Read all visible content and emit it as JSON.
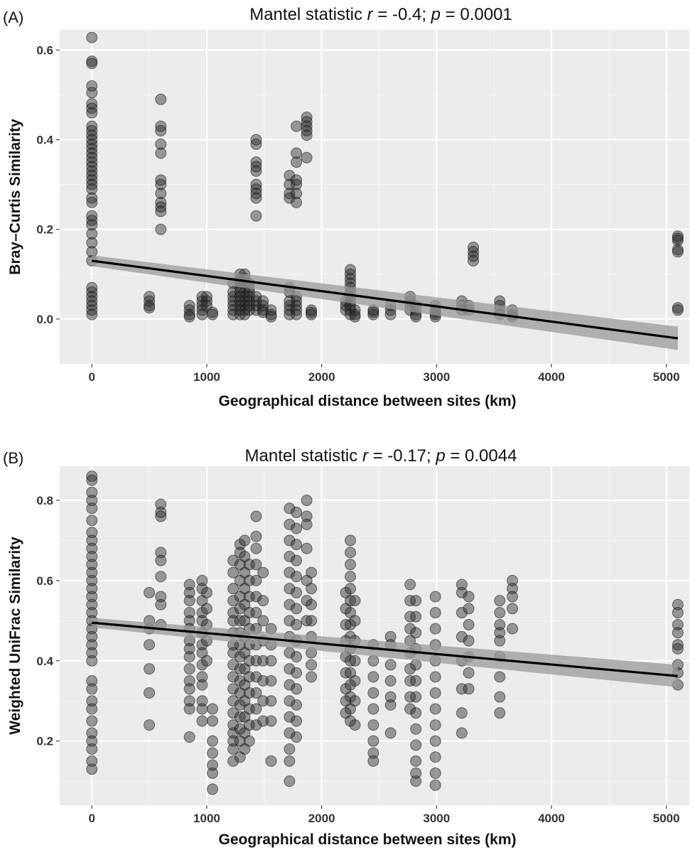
{
  "chart_data": [
    {
      "panel": "(A)",
      "type": "scatter",
      "title": {
        "prefix": "Mantel statistic ",
        "r_symbol": "r",
        "r_value": " = -0.4; ",
        "p_symbol": "p",
        "p_value": " = 0.0001"
      },
      "xlabel": "Geographical distance between sites (km)",
      "ylabel": "Bray–Curtis Similarity",
      "xlim": [
        -280,
        5200
      ],
      "ylim": [
        -0.1,
        0.645
      ],
      "xticks": [
        0,
        1000,
        2000,
        3000,
        4000,
        5000
      ],
      "yticks": [
        0.0,
        0.2,
        0.4,
        0.6
      ],
      "ytick_labels": [
        "0.0",
        "0.2",
        "0.4",
        "0.6"
      ],
      "grid": true,
      "point_color": "#2a2a2a",
      "regression": {
        "x": [
          0,
          5100
        ],
        "y": [
          0.13,
          -0.043
        ],
        "ci_start": 0.012,
        "ci_end": 0.026
      },
      "points": [
        {
          "x": 0,
          "y": [
            0.628,
            0.575,
            0.57,
            0.52,
            0.505,
            0.48,
            0.47,
            0.46,
            0.43,
            0.42,
            0.41,
            0.4,
            0.39,
            0.38,
            0.37,
            0.36,
            0.35,
            0.34,
            0.33,
            0.32,
            0.31,
            0.3,
            0.29,
            0.27,
            0.26,
            0.23,
            0.22,
            0.21,
            0.19,
            0.17,
            0.15,
            0.13,
            0.07,
            0.06,
            0.05,
            0.04,
            0.03,
            0.02,
            0.01
          ]
        },
        {
          "x": 500,
          "y": [
            0.05,
            0.04,
            0.03,
            0.025
          ]
        },
        {
          "x": 600,
          "y": [
            0.49,
            0.43,
            0.42,
            0.39,
            0.37,
            0.31,
            0.3,
            0.28,
            0.26,
            0.25,
            0.24,
            0.2
          ]
        },
        {
          "x": 850,
          "y": [
            0.03,
            0.02,
            0.01,
            0.005
          ]
        },
        {
          "x": 960,
          "y": [
            0.05,
            0.04,
            0.03,
            0.02,
            0.01
          ]
        },
        {
          "x": 1000,
          "y": [
            0.05,
            0.04,
            0.03
          ]
        },
        {
          "x": 1050,
          "y": [
            0.015,
            0.01
          ]
        },
        {
          "x": 1230,
          "y": [
            0.08,
            0.06,
            0.05,
            0.04,
            0.03,
            0.02,
            0.01
          ]
        },
        {
          "x": 1290,
          "y": [
            0.1,
            0.09,
            0.08,
            0.07,
            0.06,
            0.05,
            0.04,
            0.03,
            0.02,
            0.01
          ]
        },
        {
          "x": 1330,
          "y": [
            0.1,
            0.09,
            0.08,
            0.06,
            0.05,
            0.04,
            0.03,
            0.02,
            0.01
          ]
        },
        {
          "x": 1370,
          "y": [
            0.08,
            0.07,
            0.06,
            0.05,
            0.04,
            0.03,
            0.02
          ]
        },
        {
          "x": 1430,
          "y": [
            0.4,
            0.39,
            0.35,
            0.34,
            0.33,
            0.3,
            0.29,
            0.28,
            0.27,
            0.23,
            0.05,
            0.04,
            0.03,
            0.02
          ]
        },
        {
          "x": 1490,
          "y": [
            0.04,
            0.03,
            0.02,
            0.015
          ]
        },
        {
          "x": 1560,
          "y": [
            0.02,
            0.01,
            0.005
          ]
        },
        {
          "x": 1720,
          "y": [
            0.32,
            0.3,
            0.28,
            0.27,
            0.07,
            0.06,
            0.04,
            0.03,
            0.02,
            0.01
          ]
        },
        {
          "x": 1780,
          "y": [
            0.43,
            0.37,
            0.35,
            0.31,
            0.3,
            0.28,
            0.26,
            0.05,
            0.04,
            0.03,
            0.02,
            0.01
          ]
        },
        {
          "x": 1870,
          "y": [
            0.45,
            0.44,
            0.43,
            0.42,
            0.41,
            0.36
          ]
        },
        {
          "x": 1910,
          "y": [
            0.02,
            0.015,
            0.01
          ]
        },
        {
          "x": 2210,
          "y": [
            0.04,
            0.03,
            0.02
          ]
        },
        {
          "x": 2250,
          "y": [
            0.11,
            0.1,
            0.09,
            0.08,
            0.07,
            0.06,
            0.05,
            0.04,
            0.03,
            0.02,
            0.01
          ]
        },
        {
          "x": 2290,
          "y": [
            0.02,
            0.01,
            0.005
          ]
        },
        {
          "x": 2450,
          "y": [
            0.02,
            0.015,
            0.01
          ]
        },
        {
          "x": 2600,
          "y": [
            0.03,
            0.02,
            0.01
          ]
        },
        {
          "x": 2770,
          "y": [
            0.05,
            0.04,
            0.03,
            0.02
          ]
        },
        {
          "x": 2820,
          "y": [
            0.03,
            0.02,
            0.01,
            0.005
          ]
        },
        {
          "x": 2990,
          "y": [
            0.03,
            0.02,
            0.015,
            0.01,
            0.005
          ]
        },
        {
          "x": 3220,
          "y": [
            0.04,
            0.03,
            0.02
          ]
        },
        {
          "x": 3280,
          "y": [
            0.03,
            0.02
          ]
        },
        {
          "x": 3320,
          "y": [
            0.16,
            0.15,
            0.14,
            0.13
          ]
        },
        {
          "x": 3550,
          "y": [
            0.04,
            0.03,
            0.02,
            0.01
          ]
        },
        {
          "x": 3660,
          "y": [
            0.02,
            0.01,
            0.005
          ]
        },
        {
          "x": 5100,
          "y": [
            0.185,
            0.18,
            0.175,
            0.155,
            0.15,
            0.025,
            0.02
          ]
        }
      ]
    },
    {
      "panel": "(B)",
      "type": "scatter",
      "title": {
        "prefix": "Mantel statistic ",
        "r_symbol": "r",
        "r_value": " = -0.17; ",
        "p_symbol": "p",
        "p_value": " = 0.0044"
      },
      "xlabel": "Geographical distance between sites (km)",
      "ylabel": "Weighted UniFrac Similarity",
      "xlim": [
        -280,
        5200
      ],
      "ylim": [
        0.04,
        0.885
      ],
      "xticks": [
        0,
        1000,
        2000,
        3000,
        4000,
        5000
      ],
      "yticks": [
        0.2,
        0.4,
        0.6,
        0.8
      ],
      "ytick_labels": [
        "0.2",
        "0.4",
        "0.6",
        "0.8"
      ],
      "grid": true,
      "point_color": "#2a2a2a",
      "regression": {
        "x": [
          0,
          5100
        ],
        "y": [
          0.495,
          0.362
        ],
        "ci_start": 0.012,
        "ci_end": 0.028
      },
      "points": [
        {
          "x": 0,
          "y": [
            0.86,
            0.85,
            0.82,
            0.8,
            0.78,
            0.75,
            0.72,
            0.7,
            0.68,
            0.66,
            0.64,
            0.62,
            0.6,
            0.58,
            0.56,
            0.54,
            0.52,
            0.5,
            0.48,
            0.46,
            0.44,
            0.42,
            0.4,
            0.35,
            0.33,
            0.3,
            0.28,
            0.25,
            0.22,
            0.2,
            0.18,
            0.15,
            0.13
          ]
        },
        {
          "x": 500,
          "y": [
            0.57,
            0.5,
            0.48,
            0.44,
            0.38,
            0.32,
            0.24
          ]
        },
        {
          "x": 600,
          "y": [
            0.79,
            0.77,
            0.76,
            0.67,
            0.65,
            0.61,
            0.56,
            0.54,
            0.49
          ]
        },
        {
          "x": 850,
          "y": [
            0.59,
            0.57,
            0.55,
            0.52,
            0.5,
            0.48,
            0.45,
            0.43,
            0.41,
            0.38,
            0.35,
            0.33,
            0.3,
            0.28,
            0.21
          ]
        },
        {
          "x": 960,
          "y": [
            0.6,
            0.58,
            0.55,
            0.52,
            0.5,
            0.47,
            0.44,
            0.42,
            0.39,
            0.36,
            0.34,
            0.3,
            0.28,
            0.25
          ]
        },
        {
          "x": 1000,
          "y": [
            0.57,
            0.53,
            0.49,
            0.45,
            0.4
          ]
        },
        {
          "x": 1050,
          "y": [
            0.28,
            0.25,
            0.2,
            0.17,
            0.14,
            0.12,
            0.08
          ]
        },
        {
          "x": 1230,
          "y": [
            0.65,
            0.62,
            0.58,
            0.55,
            0.52,
            0.5,
            0.47,
            0.44,
            0.42,
            0.39,
            0.36,
            0.33,
            0.3,
            0.27,
            0.24,
            0.22,
            0.2,
            0.18,
            0.15
          ]
        },
        {
          "x": 1290,
          "y": [
            0.69,
            0.67,
            0.64,
            0.6,
            0.56,
            0.53,
            0.5,
            0.47,
            0.44,
            0.41,
            0.38,
            0.35,
            0.32,
            0.29,
            0.26,
            0.23,
            0.2,
            0.16
          ]
        },
        {
          "x": 1330,
          "y": [
            0.7,
            0.66,
            0.62,
            0.58,
            0.54,
            0.5,
            0.46,
            0.42,
            0.38,
            0.34,
            0.3,
            0.26,
            0.22,
            0.18
          ]
        },
        {
          "x": 1370,
          "y": [
            0.64,
            0.6,
            0.56,
            0.52,
            0.48,
            0.44,
            0.4,
            0.36,
            0.32,
            0.28,
            0.24,
            0.2
          ]
        },
        {
          "x": 1430,
          "y": [
            0.76,
            0.71,
            0.68,
            0.64,
            0.6,
            0.56,
            0.52,
            0.48,
            0.44,
            0.4,
            0.36,
            0.32,
            0.28,
            0.24
          ]
        },
        {
          "x": 1490,
          "y": [
            0.62,
            0.55,
            0.5,
            0.45,
            0.4,
            0.35,
            0.3,
            0.25
          ]
        },
        {
          "x": 1560,
          "y": [
            0.48,
            0.44,
            0.4,
            0.35,
            0.3,
            0.25,
            0.15
          ]
        },
        {
          "x": 1720,
          "y": [
            0.78,
            0.74,
            0.7,
            0.66,
            0.62,
            0.58,
            0.54,
            0.5,
            0.46,
            0.42,
            0.38,
            0.34,
            0.3,
            0.26,
            0.22,
            0.18,
            0.15,
            0.1
          ]
        },
        {
          "x": 1780,
          "y": [
            0.77,
            0.73,
            0.69,
            0.65,
            0.61,
            0.57,
            0.53,
            0.49,
            0.45,
            0.41,
            0.37,
            0.33,
            0.29,
            0.25,
            0.21
          ]
        },
        {
          "x": 1870,
          "y": [
            0.8,
            0.76,
            0.74,
            0.68,
            0.6,
            0.55,
            0.5
          ]
        },
        {
          "x": 1910,
          "y": [
            0.62,
            0.58,
            0.54,
            0.5,
            0.46,
            0.42,
            0.39,
            0.36
          ]
        },
        {
          "x": 2210,
          "y": [
            0.57,
            0.53,
            0.49,
            0.45,
            0.41,
            0.37,
            0.33,
            0.3,
            0.27
          ]
        },
        {
          "x": 2250,
          "y": [
            0.7,
            0.67,
            0.64,
            0.61,
            0.58,
            0.55,
            0.52,
            0.49,
            0.46,
            0.43,
            0.4,
            0.37,
            0.34,
            0.31,
            0.28,
            0.25
          ]
        },
        {
          "x": 2290,
          "y": [
            0.55,
            0.5,
            0.45,
            0.4,
            0.35,
            0.3,
            0.24
          ]
        },
        {
          "x": 2450,
          "y": [
            0.44,
            0.4,
            0.36,
            0.32,
            0.28,
            0.24,
            0.2,
            0.17,
            0.15
          ]
        },
        {
          "x": 2600,
          "y": [
            0.46,
            0.44,
            0.39,
            0.35,
            0.31,
            0.29,
            0.22
          ]
        },
        {
          "x": 2770,
          "y": [
            0.59,
            0.55,
            0.51,
            0.48,
            0.45,
            0.42,
            0.38,
            0.35,
            0.31,
            0.28
          ]
        },
        {
          "x": 2820,
          "y": [
            0.55,
            0.51,
            0.47,
            0.43,
            0.39,
            0.35,
            0.31,
            0.27,
            0.23,
            0.19,
            0.15,
            0.12,
            0.1
          ]
        },
        {
          "x": 2990,
          "y": [
            0.56,
            0.52,
            0.48,
            0.44,
            0.4,
            0.36,
            0.32,
            0.28,
            0.24,
            0.2,
            0.16,
            0.12,
            0.09
          ]
        },
        {
          "x": 3220,
          "y": [
            0.59,
            0.57,
            0.52,
            0.46,
            0.4,
            0.33,
            0.27,
            0.22
          ]
        },
        {
          "x": 3280,
          "y": [
            0.56,
            0.53,
            0.49,
            0.45,
            0.41,
            0.37,
            0.33
          ]
        },
        {
          "x": 3550,
          "y": [
            0.55,
            0.52,
            0.49,
            0.47,
            0.45,
            0.41,
            0.36,
            0.31,
            0.27
          ]
        },
        {
          "x": 3660,
          "y": [
            0.6,
            0.58,
            0.56,
            0.53,
            0.48
          ]
        },
        {
          "x": 5100,
          "y": [
            0.54,
            0.52,
            0.49,
            0.47,
            0.44,
            0.43,
            0.39,
            0.37,
            0.34
          ]
        }
      ]
    }
  ]
}
